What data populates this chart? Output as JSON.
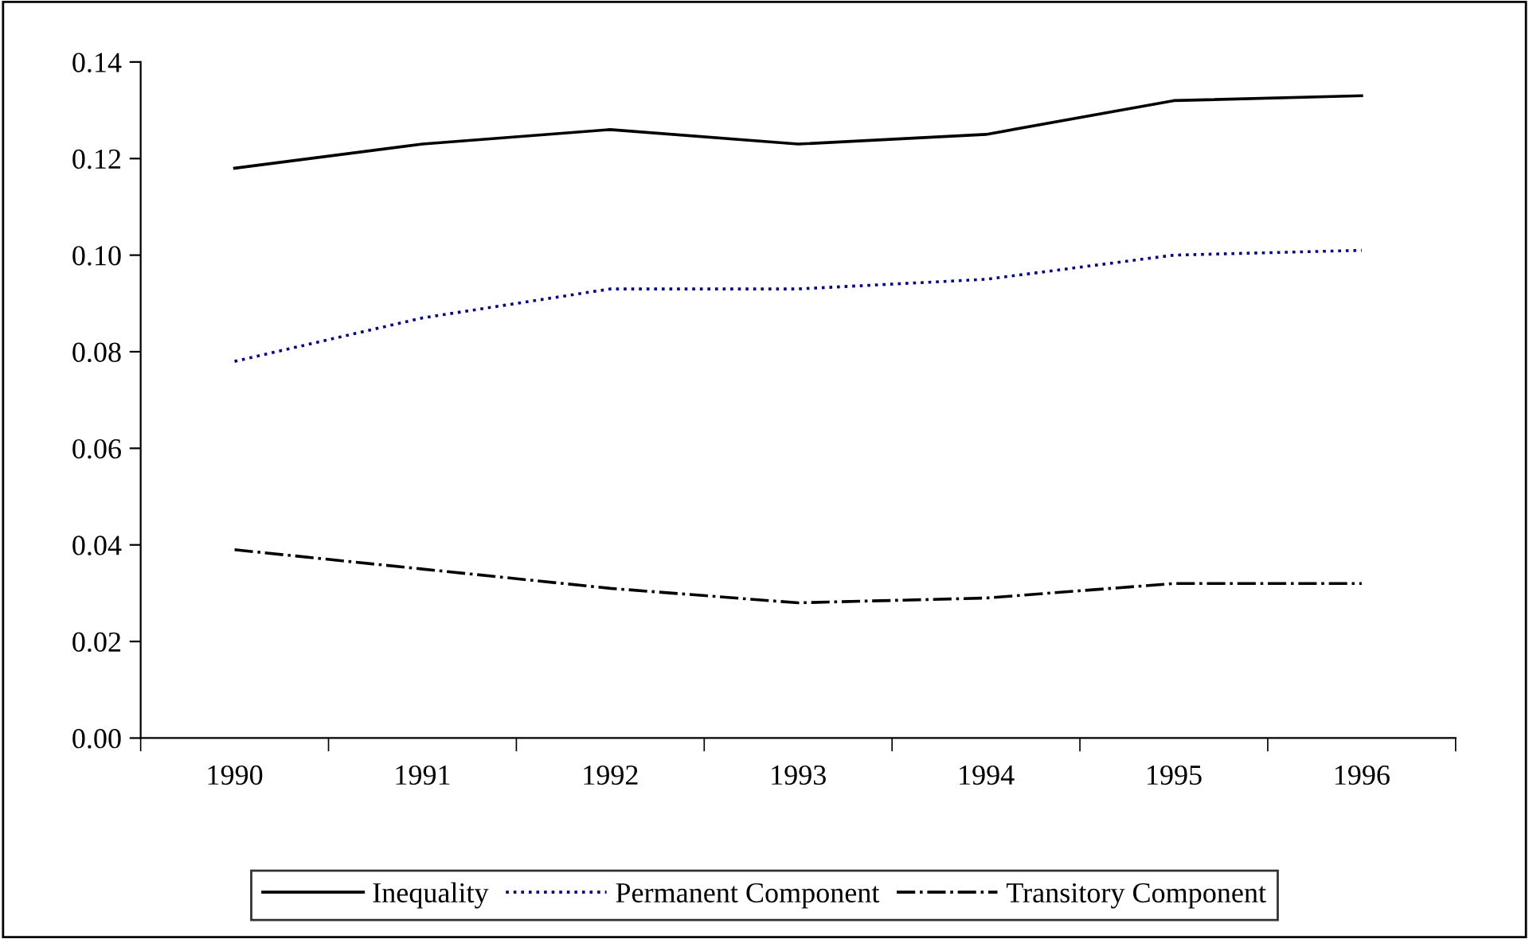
{
  "chart_data": {
    "type": "line",
    "categories": [
      "1990",
      "1991",
      "1992",
      "1993",
      "1994",
      "1995",
      "1996"
    ],
    "series": [
      {
        "name": "Inequality",
        "color": "#000000",
        "line_style": "solid",
        "values": [
          0.118,
          0.123,
          0.126,
          0.123,
          0.125,
          0.132,
          0.133
        ]
      },
      {
        "name": "Permanent Component",
        "color": "#000080",
        "line_style": "dotted",
        "values": [
          0.078,
          0.087,
          0.093,
          0.093,
          0.095,
          0.1,
          0.101
        ]
      },
      {
        "name": "Transitory Component",
        "color": "#000000",
        "line_style": "dashdot",
        "values": [
          0.039,
          0.035,
          0.031,
          0.028,
          0.029,
          0.032,
          0.032
        ]
      }
    ],
    "ylim": [
      0,
      0.14
    ],
    "yticks": [
      {
        "value": 0,
        "label": "0.00"
      },
      {
        "value": 0.02,
        "label": "0.02"
      },
      {
        "value": 0.04,
        "label": "0.04"
      },
      {
        "value": 0.06,
        "label": "0.06"
      },
      {
        "value": 0.08,
        "label": "0.08"
      },
      {
        "value": 0.1,
        "label": "0.10"
      },
      {
        "value": 0.12,
        "label": "0.12"
      },
      {
        "value": 0.14,
        "label": "0.14"
      }
    ],
    "grid": false,
    "legend": "bottom",
    "marker": "none"
  }
}
